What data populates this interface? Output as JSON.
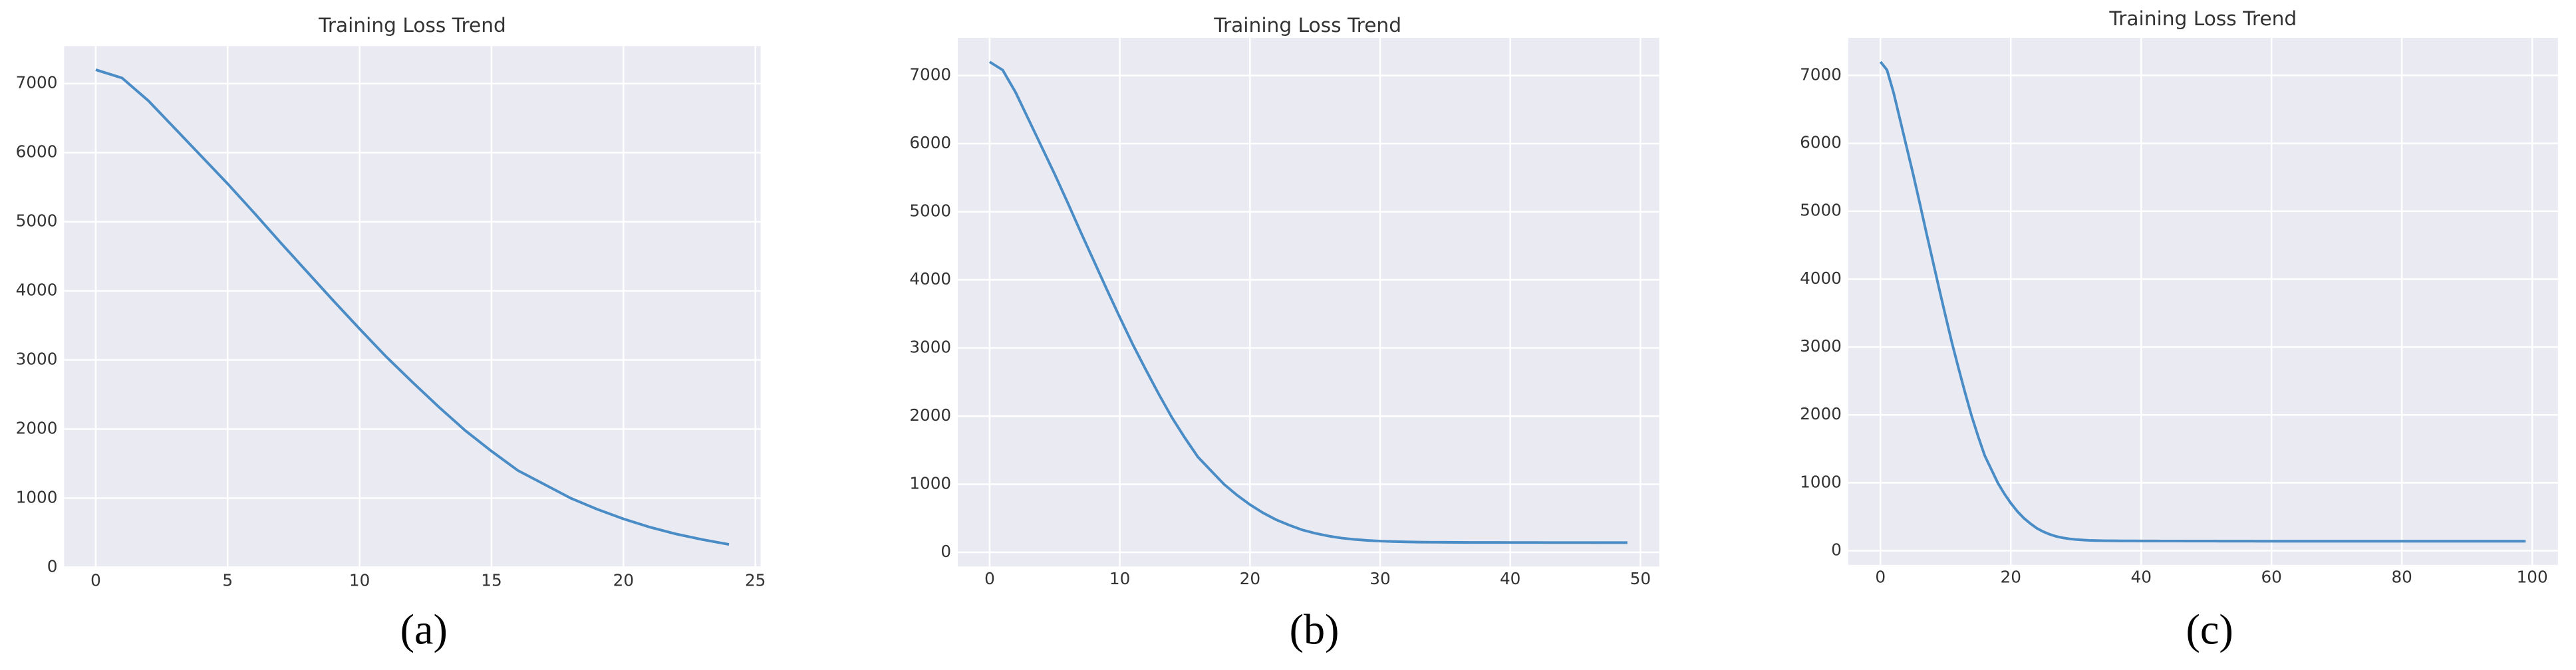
{
  "chart_data": [
    {
      "type": "line",
      "title": "Training Loss Trend",
      "panel_label": "(a)",
      "grid": true,
      "x": [
        0,
        1,
        2,
        3,
        4,
        5,
        6,
        7,
        8,
        9,
        10,
        11,
        12,
        13,
        14,
        15,
        16,
        17,
        18,
        19,
        20,
        21,
        22,
        23,
        24
      ],
      "series": [
        {
          "color": "#4a8cc6",
          "values": [
            7200,
            7080,
            6750,
            6350,
            5950,
            5550,
            5130,
            4700,
            4280,
            3860,
            3450,
            3050,
            2680,
            2320,
            1980,
            1680,
            1400,
            1200,
            1000,
            840,
            700,
            580,
            480,
            400,
            330
          ]
        }
      ],
      "xlim": [
        -1.2,
        25.2
      ],
      "xticks": [
        0,
        5,
        10,
        15,
        20,
        25
      ],
      "ylim": [
        -13,
        7543
      ],
      "yticks": [
        0,
        1000,
        2000,
        3000,
        4000,
        5000,
        6000,
        7000
      ]
    },
    {
      "type": "line",
      "title": "Training Loss Trend",
      "panel_label": "(b)",
      "grid": true,
      "x": [
        0,
        1,
        2,
        3,
        4,
        5,
        6,
        7,
        8,
        9,
        10,
        11,
        12,
        13,
        14,
        15,
        16,
        17,
        18,
        19,
        20,
        21,
        22,
        23,
        24,
        25,
        26,
        27,
        28,
        29,
        30,
        31,
        32,
        33,
        34,
        35,
        36,
        37,
        38,
        39,
        40,
        41,
        42,
        43,
        44,
        45,
        46,
        47,
        48,
        49
      ],
      "series": [
        {
          "color": "#4a8cc6",
          "values": [
            7200,
            7080,
            6750,
            6350,
            5950,
            5550,
            5130,
            4700,
            4280,
            3860,
            3450,
            3050,
            2680,
            2320,
            1980,
            1680,
            1400,
            1200,
            1000,
            840,
            700,
            580,
            480,
            400,
            330,
            280,
            240,
            210,
            190,
            175,
            165,
            158,
            153,
            150,
            148,
            147,
            146,
            145,
            145,
            145,
            144,
            144,
            144,
            143,
            143,
            143,
            143,
            142,
            142,
            142
          ]
        }
      ],
      "xlim": [
        -2.45,
        51.45
      ],
      "xticks": [
        0,
        10,
        20,
        30,
        40,
        50
      ],
      "ylim": [
        -208,
        7553
      ],
      "yticks": [
        0,
        1000,
        2000,
        3000,
        4000,
        5000,
        6000,
        7000
      ]
    },
    {
      "type": "line",
      "title": "Training Loss Trend",
      "panel_label": "(c)",
      "grid": true,
      "x": [
        0,
        1,
        2,
        3,
        4,
        5,
        6,
        7,
        8,
        9,
        10,
        11,
        12,
        13,
        14,
        15,
        16,
        17,
        18,
        19,
        20,
        21,
        22,
        23,
        24,
        25,
        26,
        27,
        28,
        29,
        30,
        31,
        32,
        33,
        34,
        35,
        36,
        37,
        38,
        39,
        40,
        41,
        42,
        43,
        44,
        45,
        46,
        47,
        48,
        49,
        50,
        51,
        52,
        53,
        54,
        55,
        56,
        57,
        58,
        59,
        60,
        61,
        62,
        63,
        64,
        65,
        66,
        67,
        68,
        69,
        70,
        71,
        72,
        73,
        74,
        75,
        76,
        77,
        78,
        79,
        80,
        81,
        82,
        83,
        84,
        85,
        86,
        87,
        88,
        89,
        90,
        91,
        92,
        93,
        94,
        95,
        96,
        97,
        98,
        99
      ],
      "series": [
        {
          "color": "#4a8cc6",
          "values": [
            7200,
            7080,
            6750,
            6350,
            5950,
            5550,
            5130,
            4700,
            4280,
            3860,
            3450,
            3050,
            2680,
            2320,
            1980,
            1680,
            1400,
            1200,
            1000,
            840,
            700,
            580,
            480,
            400,
            330,
            280,
            240,
            210,
            190,
            175,
            165,
            158,
            153,
            150,
            148,
            147,
            146,
            145,
            145,
            145,
            144,
            144,
            144,
            143,
            143,
            143,
            143,
            142,
            142,
            142,
            142,
            142,
            141,
            141,
            141,
            141,
            141,
            141,
            140,
            140,
            140,
            140,
            140,
            140,
            140,
            140,
            140,
            140,
            140,
            140,
            140,
            140,
            140,
            140,
            140,
            140,
            140,
            140,
            140,
            140,
            140,
            140,
            140,
            140,
            140,
            140,
            140,
            140,
            140,
            140,
            140,
            140,
            140,
            140,
            140,
            140,
            140,
            140,
            140,
            140
          ]
        }
      ],
      "xlim": [
        -4.95,
        103.95
      ],
      "xticks": [
        0,
        20,
        40,
        60,
        80,
        100
      ],
      "ylim": [
        -208,
        7553
      ],
      "yticks": [
        0,
        1000,
        2000,
        3000,
        4000,
        5000,
        6000,
        7000
      ]
    }
  ]
}
